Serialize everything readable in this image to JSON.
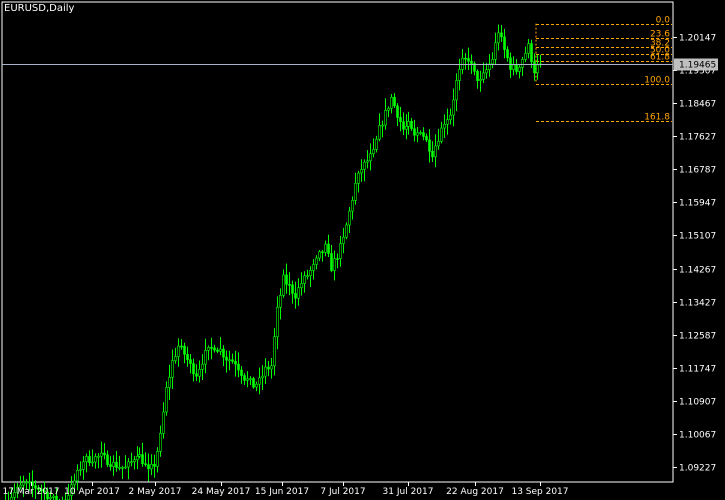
{
  "window": {
    "title": "EURUSD,Daily"
  },
  "colors": {
    "background": "#000000",
    "frame": "#ffffff",
    "candle": "#00ff00",
    "fibo": "#ffa500",
    "bid_line": "#a9b4c8",
    "price_tag_bg": "#c0c0c0"
  },
  "current_price": "1.19465",
  "chart_data": {
    "type": "candlestick",
    "symbol": "EURUSD",
    "timeframe": "Daily",
    "ylim": [
      1.0885,
      1.2103
    ],
    "y_ticks": [
      "1.20147",
      "1.19307",
      "1.18467",
      "1.17627",
      "1.16787",
      "1.15947",
      "1.15107",
      "1.14267",
      "1.13427",
      "1.12587",
      "1.11747",
      "1.10907",
      "1.10067",
      "1.09227"
    ],
    "x_ticks": [
      "17 Mar 2017",
      "10 Apr 2017",
      "2 May 2017",
      "24 May 2017",
      "15 Jun 2017",
      "7 Jul 2017",
      "31 Jul 2017",
      "22 Aug 2017",
      "13 Sep 2017"
    ],
    "fibonacci_levels": [
      {
        "label": "0.0",
        "price": 1.2048
      },
      {
        "label": "23.6",
        "price": 1.2012
      },
      {
        "label": "38.2",
        "price": 1.199
      },
      {
        "label": "50.0",
        "price": 1.1972
      },
      {
        "label": "61.8",
        "price": 1.1954
      },
      {
        "label": "100.0",
        "price": 1.1896
      },
      {
        "label": "161.8",
        "price": 1.1802
      }
    ],
    "anchor_points": [
      [
        0,
        1.0835
      ],
      [
        6,
        1.088
      ],
      [
        11,
        1.087
      ],
      [
        16,
        1.084
      ],
      [
        19,
        1.083
      ],
      [
        22,
        1.087
      ],
      [
        26,
        1.094
      ],
      [
        32,
        1.095
      ],
      [
        36,
        1.093
      ],
      [
        40,
        1.092
      ],
      [
        42,
        1.0935
      ],
      [
        44,
        1.096
      ],
      [
        46,
        1.094
      ],
      [
        48,
        1.091
      ],
      [
        50,
        1.093
      ],
      [
        52,
        1.1
      ],
      [
        54,
        1.112
      ],
      [
        56,
        1.119
      ],
      [
        58,
        1.123
      ],
      [
        60,
        1.121
      ],
      [
        62,
        1.118
      ],
      [
        64,
        1.116
      ],
      [
        67,
        1.121
      ],
      [
        70,
        1.123
      ],
      [
        72,
        1.122
      ],
      [
        74,
        1.12
      ],
      [
        77,
        1.119
      ],
      [
        80,
        1.115
      ],
      [
        83,
        1.113
      ],
      [
        85,
        1.114
      ],
      [
        87,
        1.117
      ],
      [
        89,
        1.118
      ],
      [
        91,
        1.132
      ],
      [
        93,
        1.14
      ],
      [
        95,
        1.138
      ],
      [
        97,
        1.136
      ],
      [
        99,
        1.139
      ],
      [
        101,
        1.141
      ],
      [
        103,
        1.143
      ],
      [
        105,
        1.146
      ],
      [
        107,
        1.148
      ],
      [
        109,
        1.143
      ],
      [
        111,
        1.146
      ],
      [
        113,
        1.15
      ],
      [
        115,
        1.157
      ],
      [
        117,
        1.164
      ],
      [
        119,
        1.168
      ],
      [
        121,
        1.17
      ],
      [
        123,
        1.172
      ],
      [
        125,
        1.178
      ],
      [
        127,
        1.182
      ],
      [
        129,
        1.186
      ],
      [
        131,
        1.182
      ],
      [
        133,
        1.178
      ],
      [
        135,
        1.179
      ],
      [
        137,
        1.176
      ],
      [
        139,
        1.178
      ],
      [
        141,
        1.175
      ],
      [
        143,
        1.172
      ],
      [
        145,
        1.176
      ],
      [
        147,
        1.18
      ],
      [
        149,
        1.182
      ],
      [
        151,
        1.19
      ],
      [
        153,
        1.195
      ],
      [
        155,
        1.196
      ],
      [
        157,
        1.192
      ],
      [
        159,
        1.19
      ],
      [
        161,
        1.193
      ],
      [
        163,
        1.196
      ],
      [
        165,
        1.203
      ],
      [
        167,
        1.198
      ],
      [
        169,
        1.194
      ],
      [
        171,
        1.193
      ],
      [
        173,
        1.196
      ],
      [
        175,
        1.199
      ],
      [
        177,
        1.193
      ],
      [
        179,
        1.1946
      ]
    ]
  }
}
